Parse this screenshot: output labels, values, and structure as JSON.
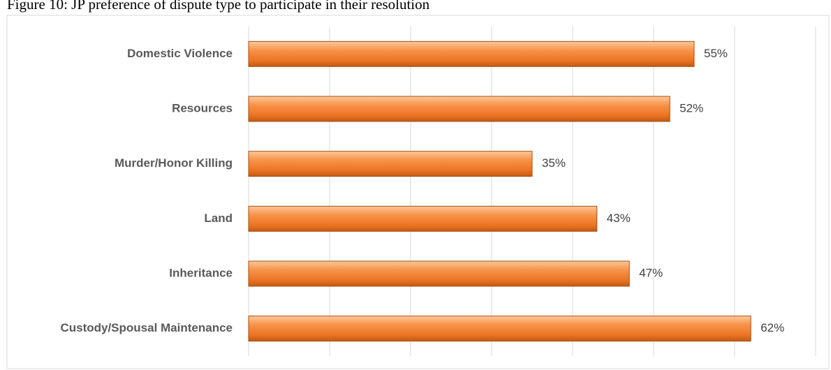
{
  "chart_data": {
    "type": "bar",
    "orientation": "horizontal",
    "title": "Figure 10: JP preference of dispute type to participate in their resolution",
    "categories": [
      "Domestic Violence",
      "Resources",
      "Murder/Honor Killing",
      "Land",
      "Inheritance",
      "Custody/Spousal Maintenance"
    ],
    "values": [
      55,
      52,
      35,
      43,
      47,
      62
    ],
    "value_labels": [
      "55%",
      "52%",
      "35%",
      "43%",
      "47%",
      "62%"
    ],
    "color": "#f07d2a",
    "xlim": [
      0,
      70
    ],
    "xticks": [
      0,
      10,
      20,
      30,
      40,
      50,
      60,
      70
    ],
    "grid": true
  }
}
